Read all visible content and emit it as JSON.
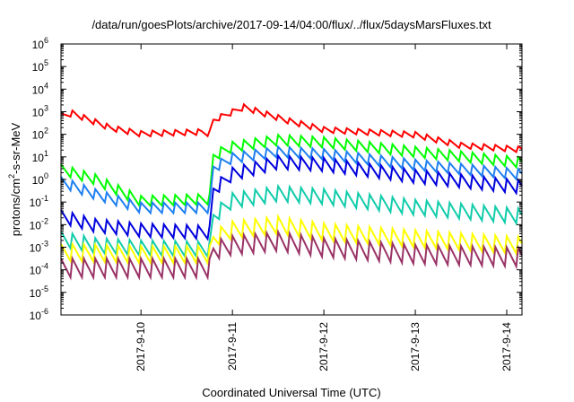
{
  "chart_data": {
    "type": "line",
    "title": "/data/run/goesPlots/archive/2017-09-14/04:00/flux/../flux/5daysMarsFluxes.txt",
    "xlabel": "Coordinated Universal Time (UTC)",
    "ylabel": {
      "prefix": "protons/cm",
      "sup": "2",
      "suffix": "-s-sr-MeV"
    },
    "xlim": [
      "2017-09-09 03:00",
      "2017-09-14 04:00"
    ],
    "ylim": [
      1e-06,
      1000000.0
    ],
    "yscale": "log",
    "grid": false,
    "legend": "none",
    "x_ticks": [
      "2017-9-10",
      "2017-9-11",
      "2017-9-12",
      "2017-9-13",
      "2017-9-14"
    ],
    "y_ticks": [
      {
        "base": "10",
        "exp": "-6"
      },
      {
        "base": "10",
        "exp": "-5"
      },
      {
        "base": "10",
        "exp": "-4"
      },
      {
        "base": "10",
        "exp": "-3"
      },
      {
        "base": "10",
        "exp": "-2"
      },
      {
        "base": "10",
        "exp": "-1"
      },
      {
        "base": "10",
        "exp": "0"
      },
      {
        "base": "10",
        "exp": "1"
      },
      {
        "base": "10",
        "exp": "2"
      },
      {
        "base": "10",
        "exp": "3"
      },
      {
        "base": "10",
        "exp": "4"
      },
      {
        "base": "10",
        "exp": "5"
      },
      {
        "base": "10",
        "exp": "6"
      }
    ],
    "series": [
      {
        "color": "#ff0000",
        "sawtooth_period_hours": 3,
        "sawtooth_drop_decades": 0.3,
        "points": [
          [
            "2017-09-09 03:00",
            600
          ],
          [
            "2017-09-09 06:00",
            800
          ],
          [
            "2017-09-09 16:00",
            180
          ],
          [
            "2017-09-10 00:00",
            100
          ],
          [
            "2017-09-10 16:00",
            120
          ],
          [
            "2017-09-10 18:00",
            100
          ],
          [
            "2017-09-10 19:00",
            400
          ],
          [
            "2017-09-11 03:00",
            1500
          ],
          [
            "2017-09-11 14:00",
            400
          ],
          [
            "2017-09-12 00:00",
            150
          ],
          [
            "2017-09-13 00:00",
            90
          ],
          [
            "2017-09-13 12:00",
            30
          ],
          [
            "2017-09-14 04:00",
            20
          ]
        ]
      },
      {
        "color": "#00ff00",
        "sawtooth_period_hours": 3,
        "sawtooth_drop_decades": 0.55,
        "points": [
          [
            "2017-09-09 03:00",
            2.5
          ],
          [
            "2017-09-09 12:00",
            0.9
          ],
          [
            "2017-09-10 00:00",
            0.1
          ],
          [
            "2017-09-10 17:00",
            0.12
          ],
          [
            "2017-09-10 18:00",
            0.12
          ],
          [
            "2017-09-10 19:00",
            10
          ],
          [
            "2017-09-11 00:00",
            25
          ],
          [
            "2017-09-11 12:00",
            50
          ],
          [
            "2017-09-12 00:00",
            40
          ],
          [
            "2017-09-13 00:00",
            15
          ],
          [
            "2017-09-14 04:00",
            5
          ]
        ]
      },
      {
        "color": "#1e7ff0",
        "sawtooth_period_hours": 3,
        "sawtooth_drop_decades": 0.55,
        "points": [
          [
            "2017-09-09 03:00",
            0.7
          ],
          [
            "2017-09-09 12:00",
            0.2
          ],
          [
            "2017-09-10 00:00",
            0.05
          ],
          [
            "2017-09-10 17:00",
            0.05
          ],
          [
            "2017-09-10 18:00",
            0.05
          ],
          [
            "2017-09-10 19:00",
            3
          ],
          [
            "2017-09-11 00:00",
            8
          ],
          [
            "2017-09-11 12:00",
            15
          ],
          [
            "2017-09-12 00:00",
            12
          ],
          [
            "2017-09-13 00:00",
            4
          ],
          [
            "2017-09-14 04:00",
            1.5
          ]
        ]
      },
      {
        "color": "#0000dd",
        "sawtooth_period_hours": 3,
        "sawtooth_drop_decades": 0.7,
        "points": [
          [
            "2017-09-09 03:00",
            0.02
          ],
          [
            "2017-09-09 12:00",
            0.008
          ],
          [
            "2017-09-10 00:00",
            0.005
          ],
          [
            "2017-09-10 17:00",
            0.004
          ],
          [
            "2017-09-10 18:00",
            0.004
          ],
          [
            "2017-09-10 19:00",
            0.3
          ],
          [
            "2017-09-11 00:00",
            1.5
          ],
          [
            "2017-09-11 12:00",
            5
          ],
          [
            "2017-09-12 00:00",
            4
          ],
          [
            "2017-09-13 00:00",
            1.2
          ],
          [
            "2017-09-14 04:00",
            0.4
          ]
        ]
      },
      {
        "color": "#11ccaa",
        "sawtooth_period_hours": 3,
        "sawtooth_drop_decades": 0.8,
        "points": [
          [
            "2017-09-09 03:00",
            0.002
          ],
          [
            "2017-09-09 12:00",
            0.001
          ],
          [
            "2017-09-10 00:00",
            0.0008
          ],
          [
            "2017-09-10 17:00",
            0.0007
          ],
          [
            "2017-09-10 18:00",
            0.0007
          ],
          [
            "2017-09-10 19:00",
            0.02
          ],
          [
            "2017-09-11 00:00",
            0.1
          ],
          [
            "2017-09-11 12:00",
            0.2
          ],
          [
            "2017-09-12 00:00",
            0.15
          ],
          [
            "2017-09-13 00:00",
            0.05
          ],
          [
            "2017-09-14 04:00",
            0.02
          ]
        ]
      },
      {
        "color": "#ffff00",
        "sawtooth_period_hours": 3,
        "sawtooth_drop_decades": 0.9,
        "points": [
          [
            "2017-09-09 03:00",
            0.0005
          ],
          [
            "2017-09-10 00:00",
            0.0004
          ],
          [
            "2017-09-10 17:00",
            0.0004
          ],
          [
            "2017-09-10 18:00",
            0.0004
          ],
          [
            "2017-09-10 19:00",
            0.002
          ],
          [
            "2017-09-11 00:00",
            0.005
          ],
          [
            "2017-09-11 12:00",
            0.008
          ],
          [
            "2017-09-12 00:00",
            0.004
          ],
          [
            "2017-09-13 00:00",
            0.002
          ],
          [
            "2017-09-14 04:00",
            0.001
          ]
        ]
      },
      {
        "color": "#993366",
        "sawtooth_period_hours": 3,
        "sawtooth_drop_decades": 1.0,
        "points": [
          [
            "2017-09-09 03:00",
            0.0001
          ],
          [
            "2017-09-10 00:00",
            0.0001
          ],
          [
            "2017-09-10 17:00",
            0.0001
          ],
          [
            "2017-09-10 18:00",
            0.0001
          ],
          [
            "2017-09-10 19:00",
            0.0006
          ],
          [
            "2017-09-11 00:00",
            0.001
          ],
          [
            "2017-09-11 12:00",
            0.0015
          ],
          [
            "2017-09-12 00:00",
            0.0008
          ],
          [
            "2017-09-13 00:00",
            0.0004
          ],
          [
            "2017-09-14 04:00",
            0.0003
          ]
        ]
      }
    ]
  }
}
